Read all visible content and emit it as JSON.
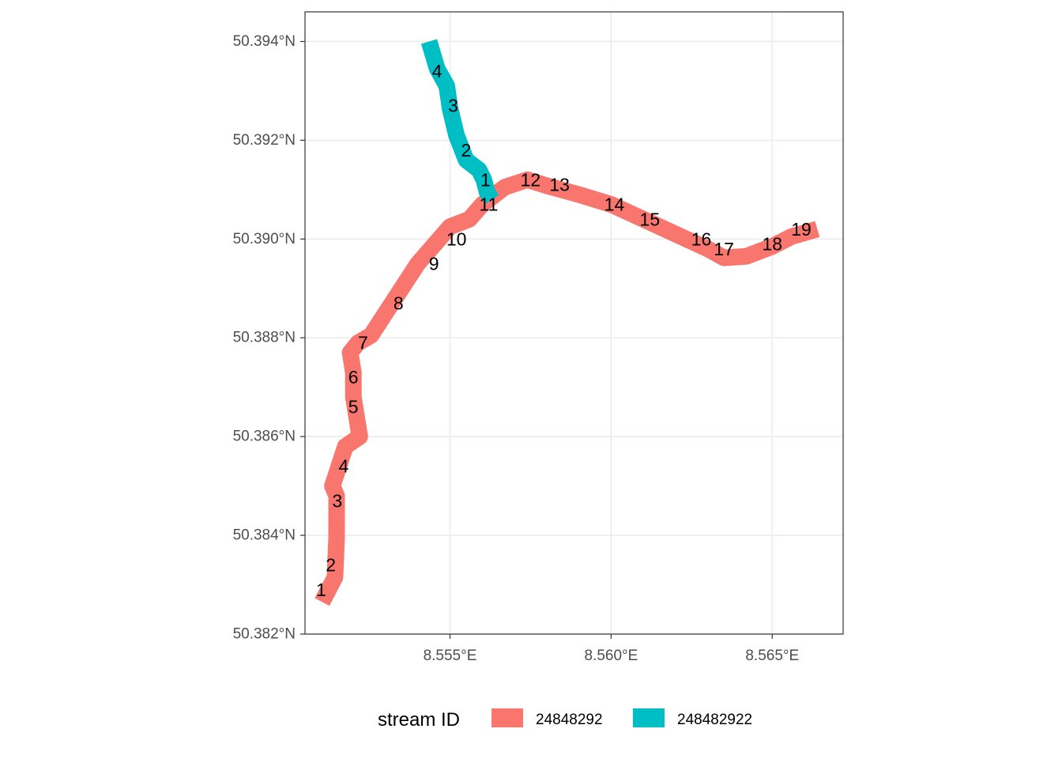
{
  "chart_data": {
    "type": "map",
    "xlabel": "",
    "ylabel": "",
    "xlim": [
      8.5505,
      8.5672
    ],
    "ylim": [
      50.382,
      50.3946
    ],
    "grid": true,
    "x_ticks": [
      {
        "value": 8.555,
        "label": "8.555°E"
      },
      {
        "value": 8.56,
        "label": "8.560°E"
      },
      {
        "value": 8.565,
        "label": "8.565°E"
      }
    ],
    "y_ticks": [
      {
        "value": 50.382,
        "label": "50.382°N"
      },
      {
        "value": 50.384,
        "label": "50.384°N"
      },
      {
        "value": 50.386,
        "label": "50.386°N"
      },
      {
        "value": 50.388,
        "label": "50.388°N"
      },
      {
        "value": 50.39,
        "label": "50.390°N"
      },
      {
        "value": 50.392,
        "label": "50.392°N"
      },
      {
        "value": 50.394,
        "label": "50.394°N"
      }
    ],
    "legend": {
      "title": "stream ID",
      "position": "bottom"
    },
    "series": [
      {
        "name": "24848292",
        "color": "#F8766D",
        "path": [
          [
            8.55103,
            50.38265
          ],
          [
            8.55143,
            50.38315
          ],
          [
            8.55148,
            50.38395
          ],
          [
            8.55148,
            50.3848
          ],
          [
            8.55135,
            50.385
          ],
          [
            8.55175,
            50.3858
          ],
          [
            8.5522,
            50.386
          ],
          [
            8.552,
            50.3868
          ],
          [
            8.552,
            50.3873
          ],
          [
            8.5519,
            50.3877
          ],
          [
            8.55215,
            50.3879
          ],
          [
            8.55255,
            50.38805
          ],
          [
            8.553,
            50.3885
          ],
          [
            8.5535,
            50.389
          ],
          [
            8.554,
            50.3895
          ],
          [
            8.555,
            50.39025
          ],
          [
            8.5556,
            50.3904
          ],
          [
            8.556,
            50.3907
          ],
          [
            8.5567,
            50.39105
          ],
          [
            8.5574,
            50.3912
          ],
          [
            8.558,
            50.39108
          ],
          [
            8.559,
            50.3909
          ],
          [
            8.56,
            50.3907
          ],
          [
            8.561,
            50.3904
          ],
          [
            8.562,
            50.3901
          ],
          [
            8.563,
            50.3898
          ],
          [
            8.5635,
            50.38962
          ],
          [
            8.5642,
            50.38965
          ],
          [
            8.565,
            50.38985
          ],
          [
            8.5656,
            50.39005
          ],
          [
            8.5664,
            50.3902
          ]
        ],
        "labels": [
          {
            "text": "1",
            "lon": 8.551,
            "lat": 50.3829
          },
          {
            "text": "2",
            "lon": 8.5513,
            "lat": 50.3834
          },
          {
            "text": "3",
            "lon": 8.5515,
            "lat": 50.3847
          },
          {
            "text": "4",
            "lon": 8.5517,
            "lat": 50.3854
          },
          {
            "text": "5",
            "lon": 8.552,
            "lat": 50.3866
          },
          {
            "text": "6",
            "lon": 8.552,
            "lat": 50.3872
          },
          {
            "text": "7",
            "lon": 8.5523,
            "lat": 50.3879
          },
          {
            "text": "8",
            "lon": 8.5534,
            "lat": 50.3887
          },
          {
            "text": "9",
            "lon": 8.5545,
            "lat": 50.3895
          },
          {
            "text": "10",
            "lon": 8.5552,
            "lat": 50.39
          },
          {
            "text": "11",
            "lon": 8.5562,
            "lat": 50.3907
          },
          {
            "text": "12",
            "lon": 8.5575,
            "lat": 50.3912
          },
          {
            "text": "13",
            "lon": 8.5584,
            "lat": 50.3911
          },
          {
            "text": "14",
            "lon": 8.5601,
            "lat": 50.3907
          },
          {
            "text": "15",
            "lon": 8.5612,
            "lat": 50.3904
          },
          {
            "text": "16",
            "lon": 8.5628,
            "lat": 50.39
          },
          {
            "text": "17",
            "lon": 8.5635,
            "lat": 50.3898
          },
          {
            "text": "18",
            "lon": 8.565,
            "lat": 50.3899
          },
          {
            "text": "19",
            "lon": 8.5659,
            "lat": 50.3902
          }
        ]
      },
      {
        "name": "248482922",
        "color": "#00BFC4",
        "path": [
          [
            8.55435,
            50.394
          ],
          [
            8.5546,
            50.39345
          ],
          [
            8.5549,
            50.3931
          ],
          [
            8.555,
            50.39265
          ],
          [
            8.5552,
            50.3921
          ],
          [
            8.5555,
            50.3916
          ],
          [
            8.5559,
            50.3914
          ],
          [
            8.55605,
            50.3912
          ],
          [
            8.55615,
            50.39095
          ],
          [
            8.5563,
            50.3908
          ]
        ],
        "labels": [
          {
            "text": "4",
            "lon": 8.5546,
            "lat": 50.3934
          },
          {
            "text": "3",
            "lon": 8.5551,
            "lat": 50.3927
          },
          {
            "text": "2",
            "lon": 8.5555,
            "lat": 50.3918
          },
          {
            "text": "1",
            "lon": 8.5561,
            "lat": 50.3912
          }
        ]
      }
    ]
  }
}
